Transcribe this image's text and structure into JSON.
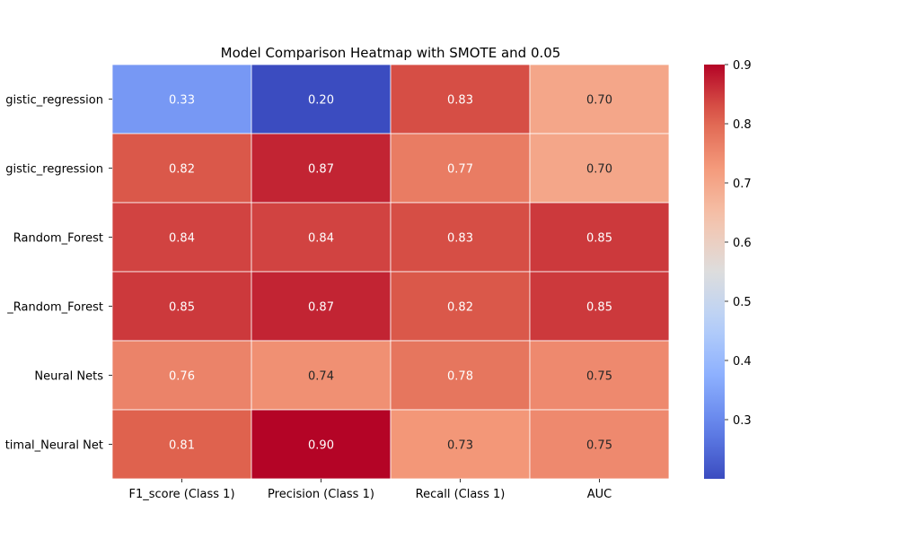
{
  "chart_data": {
    "type": "heatmap",
    "title": "Model Comparison Heatmap with SMOTE and 0.05",
    "rows": [
      "gistic_regression",
      "gistic_regression",
      "Random_Forest",
      "_Random_Forest",
      "Neural Nets",
      "timal_Neural Net"
    ],
    "columns": [
      "F1_score (Class 1)",
      "Precision (Class 1)",
      "Recall (Class 1)",
      "AUC"
    ],
    "values": [
      [
        0.33,
        0.2,
        0.83,
        0.7
      ],
      [
        0.82,
        0.87,
        0.77,
        0.7
      ],
      [
        0.84,
        0.84,
        0.83,
        0.85
      ],
      [
        0.85,
        0.87,
        0.82,
        0.85
      ],
      [
        0.76,
        0.74,
        0.78,
        0.75
      ],
      [
        0.81,
        0.9,
        0.73,
        0.75
      ]
    ],
    "value_labels": [
      [
        "0.33",
        "0.20",
        "0.83",
        "0.70"
      ],
      [
        "0.82",
        "0.87",
        "0.77",
        "0.70"
      ],
      [
        "0.84",
        "0.84",
        "0.83",
        "0.85"
      ],
      [
        "0.85",
        "0.87",
        "0.82",
        "0.85"
      ],
      [
        "0.76",
        "0.74",
        "0.78",
        "0.75"
      ],
      [
        "0.81",
        "0.90",
        "0.73",
        "0.75"
      ]
    ],
    "colormap": "coolwarm",
    "color_range": [
      0.2,
      0.9
    ],
    "colorbar_ticks": [
      "0.3",
      "0.4",
      "0.5",
      "0.6",
      "0.7",
      "0.8",
      "0.9"
    ],
    "colorbar_tick_values": [
      0.3,
      0.4,
      0.5,
      0.6,
      0.7,
      0.8,
      0.9
    ],
    "grid": false,
    "colorbar_position": "right"
  }
}
